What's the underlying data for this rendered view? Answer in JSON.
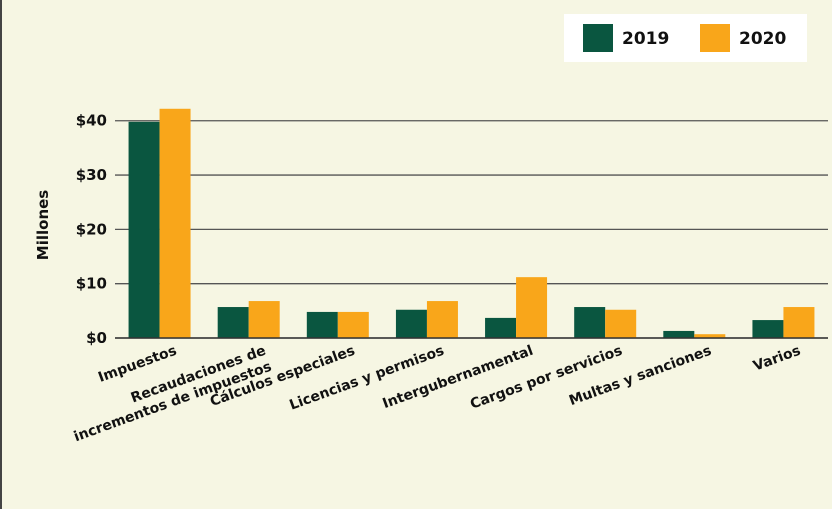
{
  "chart_data": {
    "type": "bar",
    "y_label": "Millones",
    "categories": [
      "Impuestos",
      "Recaudaciones de\nincrementos de impuestos",
      "Cálculos especiales",
      "Licencias y permisos",
      "Intergubernamental",
      "Cargos por servicios",
      "Multas y sanciones",
      "Varios"
    ],
    "series": [
      {
        "name": "2019",
        "color": "#0a5640",
        "values": [
          39.8,
          5.7,
          4.8,
          5.2,
          3.7,
          5.7,
          1.3,
          3.3
        ]
      },
      {
        "name": "2020",
        "color": "#f9a61a",
        "values": [
          42.2,
          6.8,
          4.8,
          6.8,
          11.2,
          5.2,
          0.7,
          5.7
        ]
      }
    ],
    "ylim": [
      0,
      44
    ],
    "yticks": [
      {
        "value": 0,
        "label": "$0"
      },
      {
        "value": 10,
        "label": "$10"
      },
      {
        "value": 20,
        "label": "$20"
      },
      {
        "value": 30,
        "label": "$30"
      },
      {
        "value": 40,
        "label": "$40"
      }
    ],
    "grid": true,
    "legend": "top-right"
  }
}
